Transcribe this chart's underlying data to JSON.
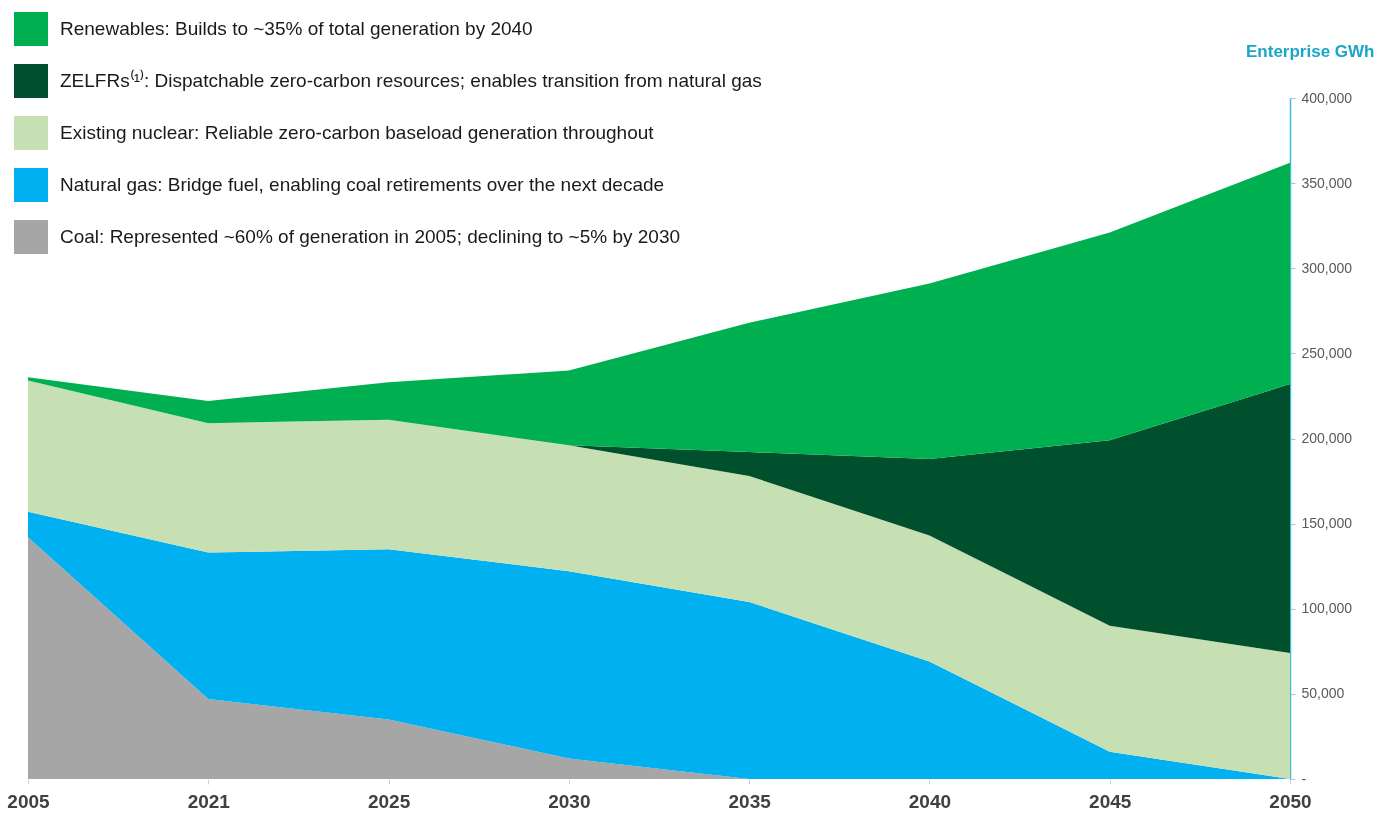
{
  "chart_data": {
    "type": "area",
    "stacked": true,
    "ylabel": "Enterprise GWh",
    "legend": "top left",
    "categories": [
      "2005",
      "2021",
      "2025",
      "2030",
      "2035",
      "2040",
      "2045",
      "2050"
    ],
    "ylim": [
      0,
      400000
    ],
    "yticks": [
      {
        "value": 0,
        "label": "-"
      },
      {
        "value": 50000,
        "label": "50,000"
      },
      {
        "value": 100000,
        "label": "100,000"
      },
      {
        "value": 150000,
        "label": "150,000"
      },
      {
        "value": 200000,
        "label": "200,000"
      },
      {
        "value": 250000,
        "label": "250,000"
      },
      {
        "value": 300000,
        "label": "300,000"
      },
      {
        "value": 350000,
        "label": "350,000"
      },
      {
        "value": 400000,
        "label": "400,000"
      }
    ],
    "series": [
      {
        "name": "Coal: Represented ~60% of generation in 2005; declining to ~5% by 2030",
        "color": "#a6a6a6",
        "values": [
          142000,
          47000,
          35000,
          12000,
          0,
          0,
          0,
          0
        ]
      },
      {
        "name": "Natural gas: Bridge fuel, enabling coal retirements over the next decade",
        "color": "#00b0f0",
        "values": [
          15000,
          86000,
          100000,
          110000,
          104000,
          69000,
          16000,
          0
        ]
      },
      {
        "name": "Existing nuclear: Reliable zero-carbon baseload generation throughout",
        "color": "#c6e0b4",
        "values": [
          77000,
          76000,
          76000,
          74000,
          74000,
          74000,
          74000,
          74000
        ]
      },
      {
        "name": "ZELFRs⁽¹⁾: Dispatchable zero-carbon resources; enables transition from natural gas",
        "color": "#00502d",
        "values": [
          0,
          0,
          0,
          0,
          14000,
          45000,
          109000,
          158000
        ]
      },
      {
        "name": "Renewables: Builds to ~35% of total generation by 2040",
        "color": "#00b050",
        "values": [
          2000,
          13000,
          22000,
          44000,
          76000,
          103000,
          122000,
          130000
        ]
      }
    ]
  }
}
